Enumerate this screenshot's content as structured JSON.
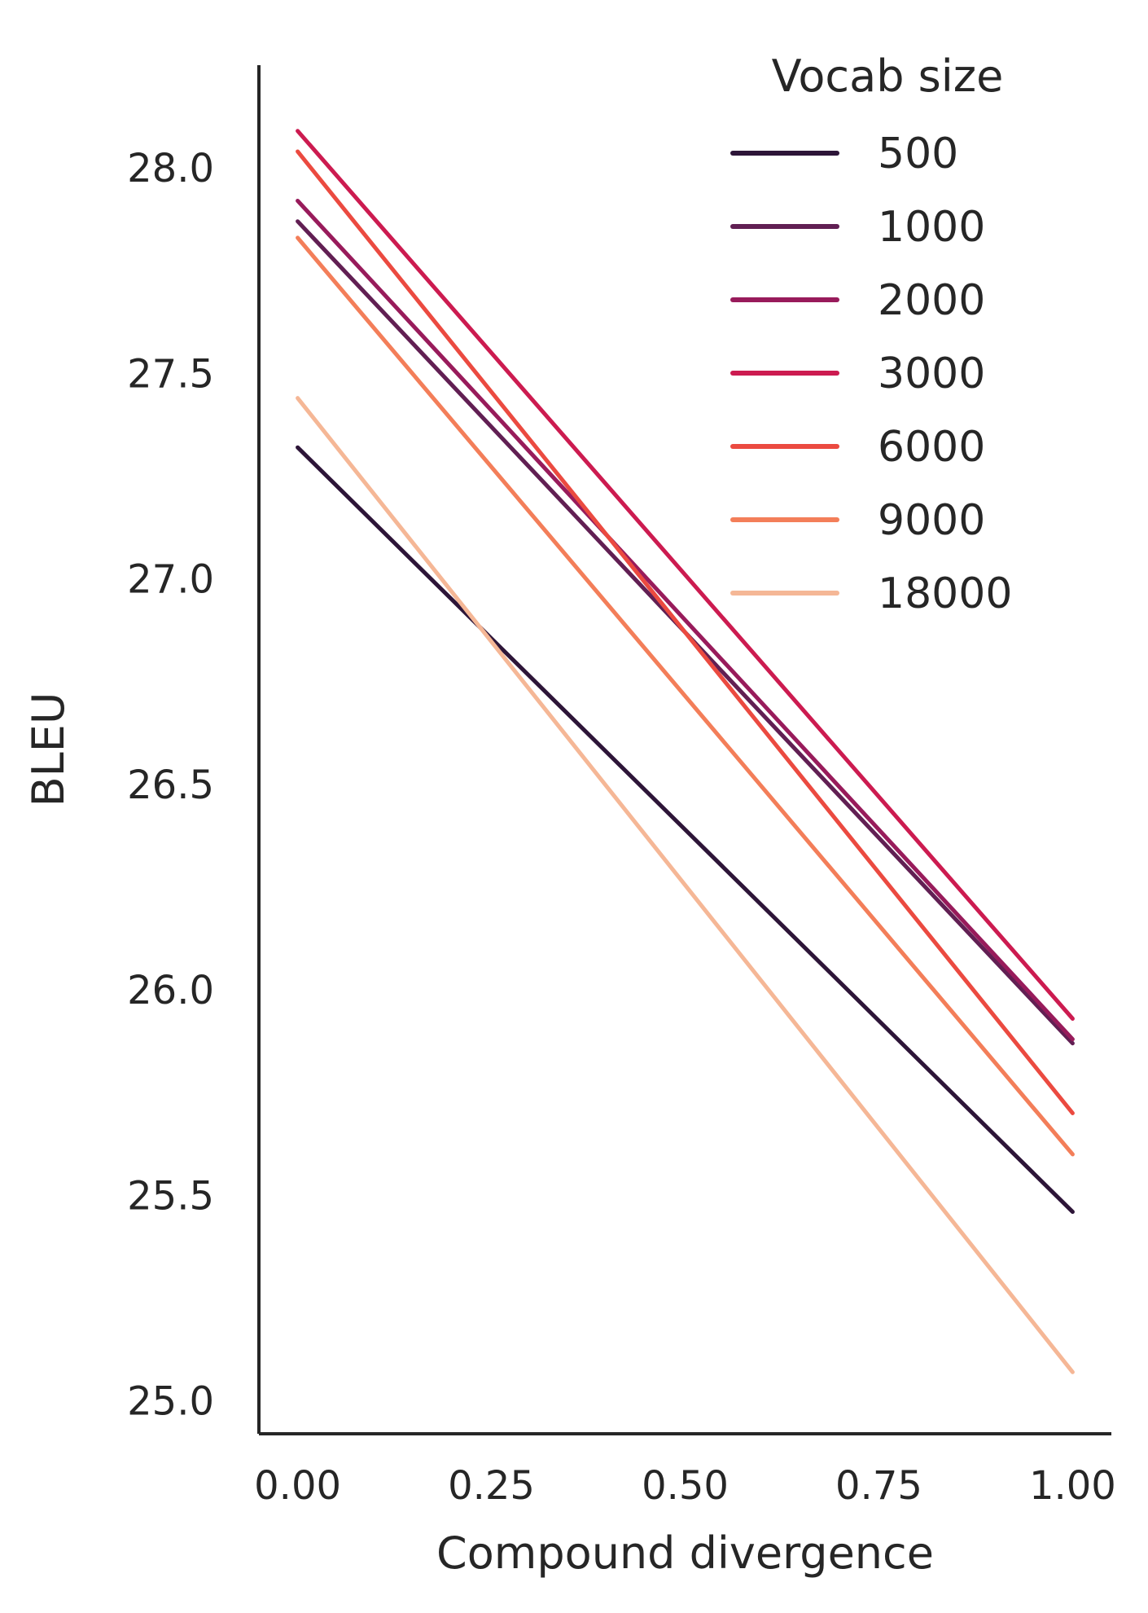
{
  "chart_data": {
    "type": "line",
    "title": "",
    "xlabel": "Compound divergence",
    "ylabel": "BLEU",
    "xlim": [
      -0.05,
      1.05
    ],
    "ylim": [
      24.92,
      28.25
    ],
    "xticks": [
      0.0,
      0.25,
      0.5,
      0.75,
      1.0
    ],
    "xtick_labels": [
      "0.00",
      "0.25",
      "0.50",
      "0.75",
      "1.00"
    ],
    "yticks": [
      25.0,
      25.5,
      26.0,
      26.5,
      27.0,
      27.5,
      28.0
    ],
    "ytick_labels": [
      "25.0",
      "25.5",
      "26.0",
      "26.5",
      "27.0",
      "27.5",
      "28.0"
    ],
    "grid": false,
    "legend": {
      "title": "Vocab size",
      "placement": "top-right"
    },
    "x": [
      0.0,
      1.0
    ],
    "series": [
      {
        "name": "500",
        "color": "#2d1538",
        "values": [
          27.32,
          25.46
        ]
      },
      {
        "name": "1000",
        "color": "#611f53",
        "values": [
          27.87,
          25.87
        ]
      },
      {
        "name": "2000",
        "color": "#981b5b",
        "values": [
          27.92,
          25.88
        ]
      },
      {
        "name": "3000",
        "color": "#cc1b50",
        "values": [
          28.09,
          25.93
        ]
      },
      {
        "name": "6000",
        "color": "#eb4a40",
        "values": [
          28.04,
          25.7
        ]
      },
      {
        "name": "9000",
        "color": "#f37e59",
        "values": [
          27.83,
          25.6
        ]
      },
      {
        "name": "18000",
        "color": "#f5b796",
        "values": [
          27.44,
          25.07
        ]
      }
    ]
  }
}
